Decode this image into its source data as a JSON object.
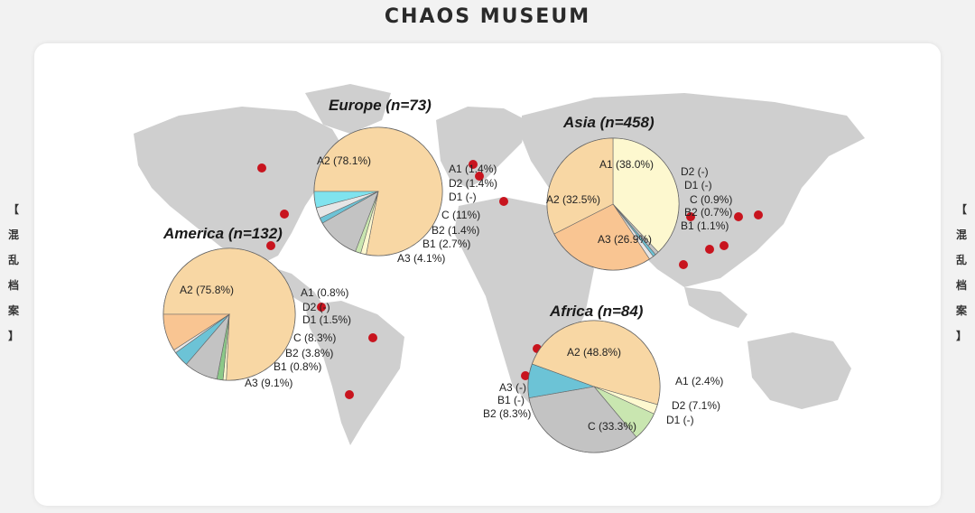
{
  "header": {
    "title": "CHAOS MUSEUM"
  },
  "sidebar": {
    "left": [
      "【",
      "混",
      "乱",
      "档",
      "案",
      "】"
    ],
    "right": [
      "【",
      "混",
      "乱",
      "档",
      "案",
      "】"
    ]
  },
  "colors": {
    "land": "#cfcfcf",
    "dot": "#c8141e",
    "A1": "#fdf8cf",
    "A2": "#f8d7a4",
    "A3": "#f9c592",
    "B1": "#e6e6e6",
    "B2": "#6cc3d6",
    "C": "#c3c3c3",
    "D1": "#8bc888",
    "D2": "#c9e6b0",
    "A3_europe": "#7fe3ee"
  },
  "regions": [
    {
      "title": "Europe (n=73)",
      "slices": [
        {
          "key": "A2",
          "label": "A2 (78.1%)",
          "value": 78.1
        },
        {
          "key": "A1",
          "label": "A1 (1.4%)",
          "value": 1.4
        },
        {
          "key": "D2",
          "label": "D2 (1.4%)",
          "value": 1.4
        },
        {
          "key": "D1",
          "label": "D1 (-)",
          "value": 0
        },
        {
          "key": "C",
          "label": "C (11%)",
          "value": 11.0
        },
        {
          "key": "B2",
          "label": "B2 (1.4%)",
          "value": 1.4
        },
        {
          "key": "B1",
          "label": "B1 (2.7%)",
          "value": 2.7
        },
        {
          "key": "A3",
          "label": "A3 (4.1%)",
          "value": 4.1
        }
      ]
    },
    {
      "title": "Asia (n=458)",
      "slices": [
        {
          "key": "A1",
          "label": "A1 (38.0%)",
          "value": 38.0
        },
        {
          "key": "D2",
          "label": "D2 (-)",
          "value": 0
        },
        {
          "key": "D1",
          "label": "D1 (-)",
          "value": 0
        },
        {
          "key": "C",
          "label": "C (0.9%)",
          "value": 0.9
        },
        {
          "key": "B2",
          "label": "B2 (0.7%)",
          "value": 0.7
        },
        {
          "key": "B1",
          "label": "B1 (1.1%)",
          "value": 1.1
        },
        {
          "key": "A3",
          "label": "A3 (26.9%)",
          "value": 26.9
        },
        {
          "key": "A2",
          "label": "A2 (32.5%)",
          "value": 32.5
        }
      ]
    },
    {
      "title": "America (n=132)",
      "slices": [
        {
          "key": "A2",
          "label": "A2 (75.8%)",
          "value": 75.8
        },
        {
          "key": "A1",
          "label": "A1 (0.8%)",
          "value": 0.8
        },
        {
          "key": "D2",
          "label": "D2 (-)",
          "value": 0
        },
        {
          "key": "D1",
          "label": "D1 (1.5%)",
          "value": 1.5
        },
        {
          "key": "C",
          "label": "C (8.3%)",
          "value": 8.3
        },
        {
          "key": "B2",
          "label": "B2 (3.8%)",
          "value": 3.8
        },
        {
          "key": "B1",
          "label": "B1 (0.8%)",
          "value": 0.8
        },
        {
          "key": "A3",
          "label": "A3 (9.1%)",
          "value": 9.1
        }
      ]
    },
    {
      "title": "Africa (n=84)",
      "slices": [
        {
          "key": "A2",
          "label": "A2 (48.8%)",
          "value": 48.8
        },
        {
          "key": "A1",
          "label": "A1 (2.4%)",
          "value": 2.4
        },
        {
          "key": "D2",
          "label": "D2 (7.1%)",
          "value": 7.1
        },
        {
          "key": "D1",
          "label": "D1 (-)",
          "value": 0
        },
        {
          "key": "C",
          "label": "C (33.3%)",
          "value": 33.3
        },
        {
          "key": "B2",
          "label": "B2 (8.3%)",
          "value": 8.3
        },
        {
          "key": "B1",
          "label": "B1 (-)",
          "value": 0
        },
        {
          "key": "A3",
          "label": "A3 (-)",
          "value": 0
        }
      ]
    }
  ]
}
